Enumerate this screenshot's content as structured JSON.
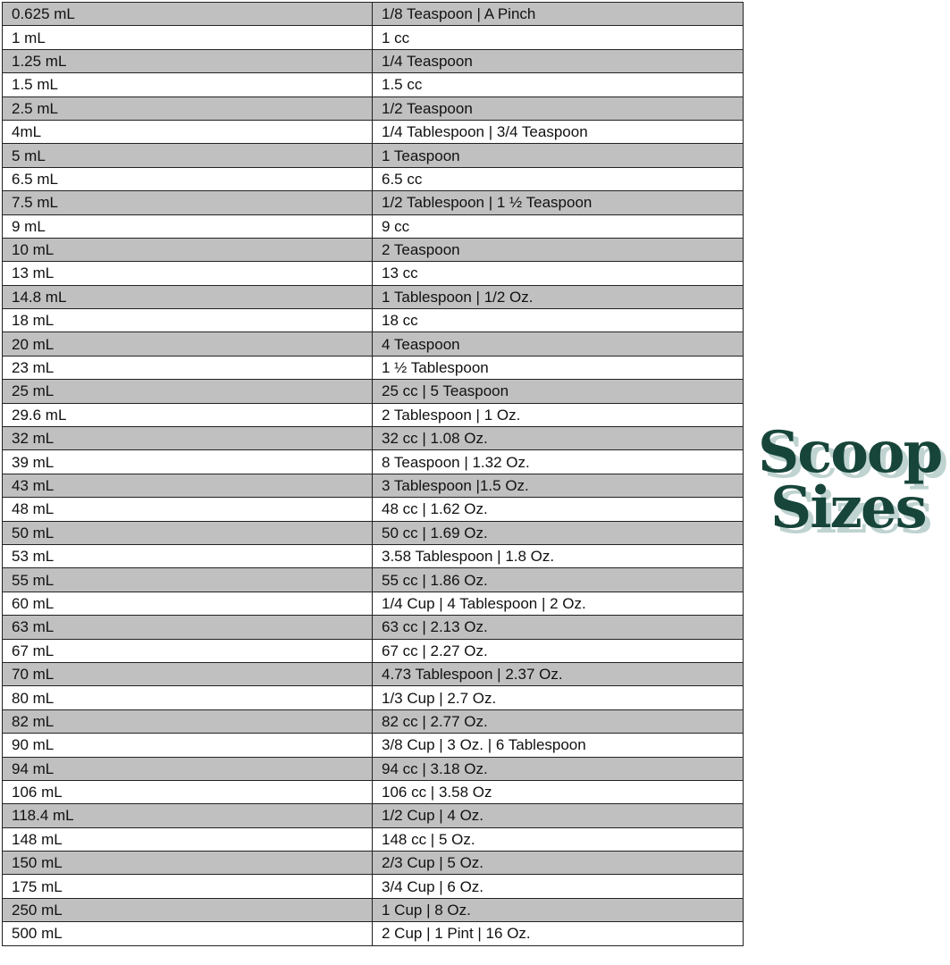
{
  "table": {
    "rows": [
      [
        "0.625 mL",
        "1/8 Teaspoon | A Pinch"
      ],
      [
        "1 mL",
        "1 cc"
      ],
      [
        "1.25 mL",
        "1/4 Teaspoon"
      ],
      [
        "1.5 mL",
        "1.5 cc"
      ],
      [
        "2.5 mL",
        "1/2 Teaspoon"
      ],
      [
        "4mL",
        "1/4 Tablespoon | 3/4 Teaspoon"
      ],
      [
        "5 mL",
        "1 Teaspoon"
      ],
      [
        "6.5 mL",
        "6.5 cc"
      ],
      [
        "7.5 mL",
        "1/2 Tablespoon | 1 ½ Teaspoon"
      ],
      [
        "9 mL",
        "9 cc"
      ],
      [
        "10 mL",
        "2 Teaspoon"
      ],
      [
        "13 mL",
        "13 cc"
      ],
      [
        "14.8 mL",
        "1 Tablespoon | 1/2 Oz."
      ],
      [
        "18 mL",
        "18 cc"
      ],
      [
        "20 mL",
        "4 Teaspoon"
      ],
      [
        "23 mL",
        "1 ½ Tablespoon"
      ],
      [
        "25 mL",
        "25 cc | 5 Teaspoon"
      ],
      [
        "29.6 mL",
        "2 Tablespoon | 1 Oz."
      ],
      [
        "32 mL",
        "32 cc | 1.08 Oz."
      ],
      [
        "39 mL",
        "8 Teaspoon | 1.32 Oz."
      ],
      [
        "43 mL",
        "3 Tablespoon |1.5 Oz."
      ],
      [
        "48 mL",
        "48 cc | 1.62 Oz."
      ],
      [
        "50 mL",
        "50 cc | 1.69 Oz."
      ],
      [
        "53 mL",
        "3.58 Tablespoon | 1.8 Oz."
      ],
      [
        "55 mL",
        "55 cc | 1.86 Oz."
      ],
      [
        "60 mL",
        "1/4 Cup | 4 Tablespoon | 2 Oz."
      ],
      [
        "63 mL",
        "63 cc | 2.13 Oz."
      ],
      [
        "67 mL",
        "67 cc | 2.27 Oz."
      ],
      [
        "70 mL",
        "4.73 Tablespoon | 2.37 Oz."
      ],
      [
        "80 mL",
        "1/3 Cup | 2.7 Oz."
      ],
      [
        "82 mL",
        "82 cc | 2.77 Oz."
      ],
      [
        "90 mL",
        "3/8 Cup | 3 Oz. | 6 Tablespoon"
      ],
      [
        "94 mL",
        "94 cc | 3.18 Oz."
      ],
      [
        "106 mL",
        "106 cc | 3.58 Oz"
      ],
      [
        "118.4 mL",
        "1/2 Cup | 4 Oz."
      ],
      [
        "148 mL",
        "148 cc | 5 Oz."
      ],
      [
        "150 mL",
        "2/3 Cup | 5 Oz."
      ],
      [
        "175 mL",
        "3/4 Cup | 6 Oz."
      ],
      [
        "250 mL",
        "1 Cup | 8 Oz."
      ],
      [
        "500 mL",
        "2 Cup | 1 Pint | 16 Oz."
      ]
    ]
  },
  "logo": {
    "line1": "Scoop",
    "line2": "Sizes",
    "color": "#17453a",
    "shadow": "#bfd3d0"
  }
}
